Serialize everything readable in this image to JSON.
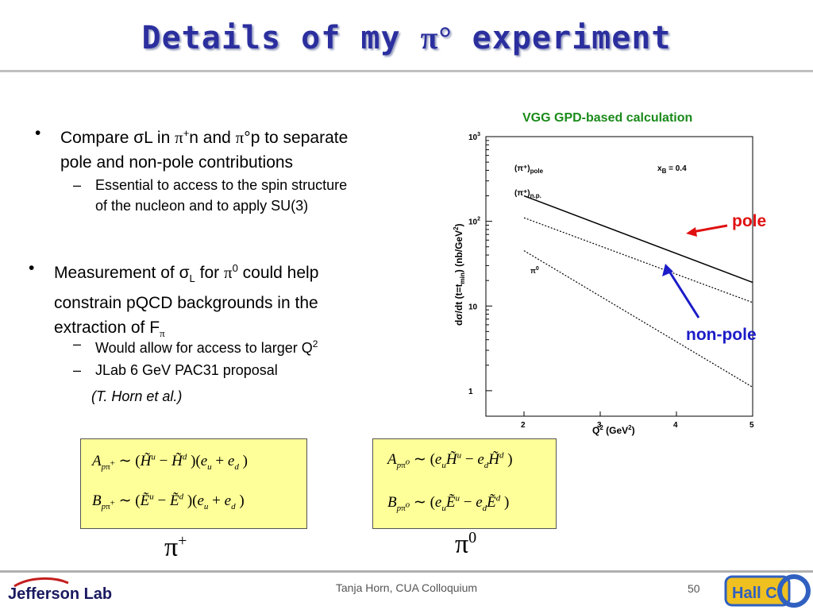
{
  "title": {
    "text": "Details of my",
    "pi": "π°",
    "suffix": "experiment"
  },
  "bullets": {
    "b1": {
      "prefix": "Compare σL in ",
      "pi1": "π",
      "sup1": "+",
      "mid": "n and ",
      "pi2": "π",
      "deg": "°",
      "rest1": "p to separate",
      "line2": "pole and non-pole contributions"
    },
    "b1_sub1": {
      "line1": "Essential to access to the spin structure",
      "line2": "of the nucleon and to apply SU(3)"
    },
    "b2": {
      "prefix": "Measurement of σ",
      "subL": "L",
      "for": " for ",
      "pi": "π",
      "sup0": "0",
      "rest1": " could help",
      "line2": "constrain pQCD backgrounds in the",
      "line3": "extraction of F",
      "subpi": "π"
    },
    "b2_sub1": {
      "text": "Would allow for access to larger Q",
      "sup": "2"
    },
    "b2_sub2": {
      "text": "JLab 6 GeV PAC31 proposal"
    },
    "b2_note": "(T. Horn et al.)"
  },
  "plot_title": "VGG GPD-based calculation",
  "chart_data": {
    "type": "line",
    "xlabel": "Q² (GeV²)",
    "ylabel": "dσ/dt (t=t_min) (nb/GeV²)",
    "xlim": [
      1.5,
      5
    ],
    "ylim": [
      0.5,
      1000
    ],
    "yscale": "log",
    "x_ticks": [
      "2",
      "3",
      "4",
      "5"
    ],
    "y_ticks": [
      "1",
      "10",
      "10²",
      "10³"
    ],
    "annotation": "x_B = 0.4",
    "series": [
      {
        "name": "(π⁺)pole",
        "style": "solid",
        "x": [
          2,
          5
        ],
        "y": [
          200,
          19
        ]
      },
      {
        "name": "(π⁺)n.p.",
        "style": "dotted",
        "x": [
          2,
          5
        ],
        "y": [
          110,
          11
        ]
      },
      {
        "name": "π⁰",
        "style": "dotted",
        "x": [
          2,
          5
        ],
        "y": [
          45,
          1.1
        ]
      }
    ]
  },
  "plot_labels": {
    "pole_label": "pole",
    "nonpole_label": "non-pole"
  },
  "colors": {
    "title": "#2b2f9e",
    "plot_title": "#1a8a1a",
    "pole_arrow": "#e01010",
    "nonpole_arrow": "#1c1cc8",
    "eq_box": "#ffff99"
  },
  "equations": {
    "pi_plus": {
      "A_lhs": "A",
      "B_lhs": "B",
      "label": "π",
      "label_sup": "+"
    },
    "pi_zero": {
      "A_lhs": "A",
      "B_lhs": "B",
      "label": "π",
      "label_sup": "0"
    }
  },
  "footer": {
    "text": "Tanja Horn, CUA Colloquium",
    "page": "50",
    "logo_text": "Jefferson Lab",
    "hall_logo_text": "Hall C"
  }
}
